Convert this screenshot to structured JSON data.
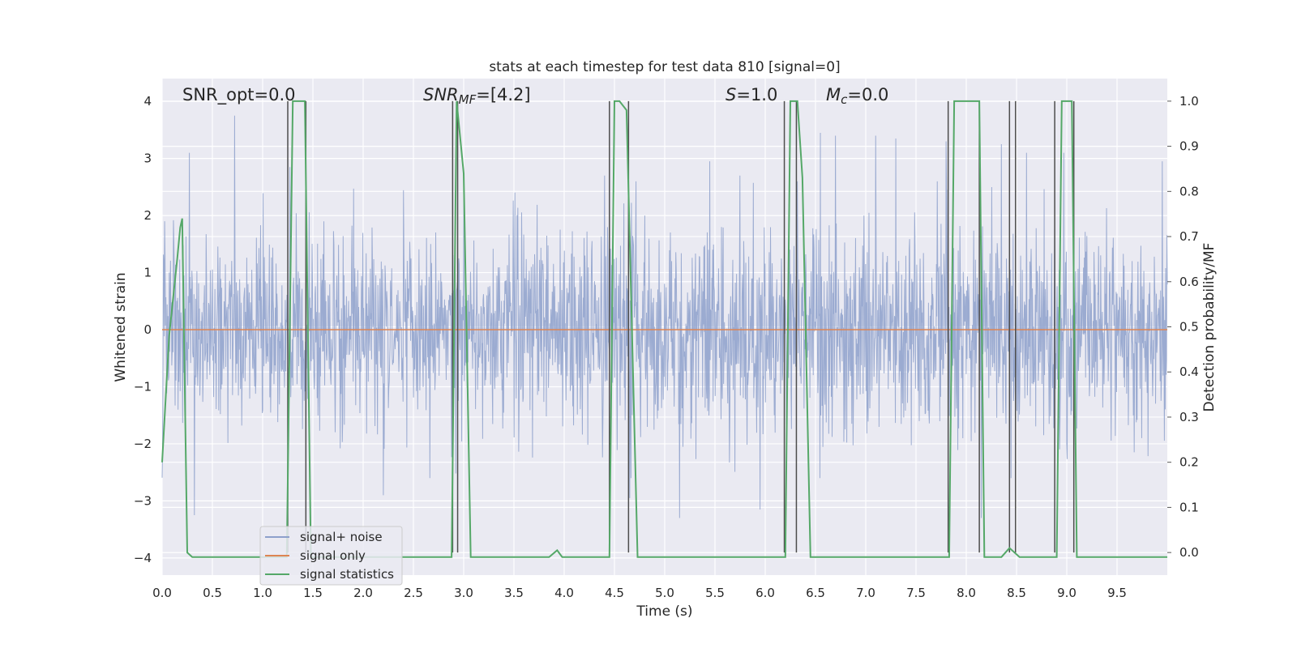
{
  "chart_data": {
    "type": "line",
    "title": "stats at each timestep for test data 810 [signal=0]",
    "xlabel": "Time (s)",
    "ylabel": "Whitened strain",
    "y2label": "Detection probability/MF",
    "xlim": [
      0,
      10
    ],
    "ylim": [
      -4.3,
      4.4
    ],
    "y2lim": [
      -0.05,
      1.05
    ],
    "x_ticks": [
      "0.0",
      "0.5",
      "1.0",
      "1.5",
      "2.0",
      "2.5",
      "3.0",
      "3.5",
      "4.0",
      "4.5",
      "5.0",
      "5.5",
      "6.0",
      "6.5",
      "7.0",
      "7.5",
      "8.0",
      "8.5",
      "9.0",
      "9.5"
    ],
    "y_ticks": [
      "4",
      "3",
      "2",
      "1",
      "0",
      "−1",
      "−2",
      "−3",
      "−4"
    ],
    "y2_ticks": [
      "1.0",
      "0.9",
      "0.8",
      "0.7",
      "0.6",
      "0.5",
      "0.4",
      "0.3",
      "0.2",
      "0.1",
      "0.0"
    ],
    "grid": true,
    "legend_position": "lower-left",
    "annotations": {
      "snr_opt": "SNR_opt=0.0",
      "snr_mf_sym": "SNR",
      "snr_mf_sub": "MF",
      "snr_mf_val": "=[4.2]",
      "s_sym": "S",
      "s_val": "=1.0",
      "mc_sym": "M",
      "mc_sub": "c",
      "mc_val": "=0.0"
    },
    "series": [
      {
        "name": "signal+ noise",
        "color": "#8da0cb",
        "noise_std": 0.85,
        "peak_values": [
          [
            0.27,
            3.1
          ],
          [
            0.72,
            3.75
          ],
          [
            1.27,
            2.85
          ],
          [
            3.0,
            2.4
          ],
          [
            4.4,
            2.7
          ],
          [
            5.45,
            2.95
          ],
          [
            5.75,
            2.7
          ],
          [
            5.95,
            -3.15
          ],
          [
            6.55,
            3.45
          ],
          [
            6.7,
            3.4
          ],
          [
            7.1,
            3.4
          ],
          [
            7.3,
            3.35
          ],
          [
            7.8,
            3.3
          ],
          [
            8.35,
            3.25
          ],
          [
            8.6,
            3.1
          ],
          [
            8.97,
            3.1
          ],
          [
            9.95,
            2.95
          ],
          [
            5.15,
            -3.3
          ],
          [
            0.32,
            -3.25
          ],
          [
            8.15,
            -3.3
          ],
          [
            4.65,
            -2.95
          ],
          [
            2.2,
            -2.9
          ]
        ]
      },
      {
        "name": "signal only",
        "color": "#dd8452",
        "values": 0
      },
      {
        "name": "signal statistics",
        "color": "#55a868",
        "axis": "right",
        "x": [
          0.0,
          0.07,
          0.15,
          0.18,
          0.2,
          0.25,
          0.3,
          1.24,
          1.3,
          1.42,
          1.48,
          2.88,
          2.93,
          3.0,
          3.07,
          3.85,
          3.93,
          3.98,
          4.45,
          4.5,
          4.55,
          4.62,
          4.73,
          6.2,
          6.25,
          6.32,
          6.37,
          6.45,
          7.83,
          7.88,
          8.13,
          8.18,
          8.35,
          8.43,
          8.53,
          8.9,
          8.95,
          9.05,
          9.1,
          10.0
        ],
        "y": [
          0.2,
          0.48,
          0.65,
          0.72,
          0.74,
          0.0,
          -0.01,
          -0.01,
          1.0,
          1.0,
          -0.01,
          -0.01,
          1.0,
          0.84,
          -0.01,
          -0.01,
          0.005,
          -0.01,
          -0.01,
          1.0,
          1.0,
          0.98,
          -0.01,
          -0.01,
          1.0,
          1.0,
          0.83,
          -0.01,
          -0.01,
          1.0,
          1.0,
          -0.01,
          -0.01,
          0.01,
          -0.01,
          -0.01,
          1.0,
          1.0,
          -0.01,
          -0.01
        ]
      }
    ],
    "markers": {
      "color": "#4d4d4d",
      "x": [
        1.25,
        1.43,
        2.89,
        2.94,
        4.45,
        4.64,
        6.19,
        6.31,
        7.82,
        8.13,
        8.43,
        8.49,
        8.88,
        9.07
      ]
    }
  }
}
